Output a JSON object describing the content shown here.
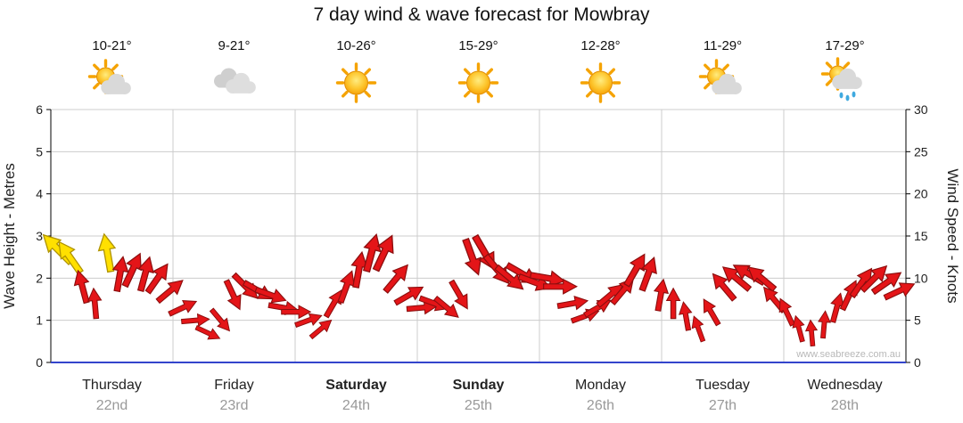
{
  "chart_data": {
    "type": "line",
    "title": "7 day wind & wave forecast for Mowbray",
    "ylabel": "Wave Height - Metres",
    "y2label": "Wind Speed - Knots",
    "ylim": [
      0,
      6
    ],
    "y2lim": [
      0,
      30
    ],
    "left_ticks": [
      0,
      1,
      2,
      3,
      4,
      5,
      6
    ],
    "right_ticks": [
      0,
      5,
      10,
      15,
      20,
      25,
      30
    ],
    "watermark": "www.seabreeze.com.au",
    "days": [
      {
        "name": "Thursday",
        "date": "22nd",
        "temp": "10-21°",
        "icon": "partly-cloudy",
        "weekend": false
      },
      {
        "name": "Friday",
        "date": "23rd",
        "temp": "9-21°",
        "icon": "cloudy",
        "weekend": false
      },
      {
        "name": "Saturday",
        "date": "24th",
        "temp": "10-26°",
        "icon": "sunny",
        "weekend": true
      },
      {
        "name": "Sunday",
        "date": "25th",
        "temp": "15-29°",
        "icon": "sunny",
        "weekend": true
      },
      {
        "name": "Monday",
        "date": "26th",
        "temp": "12-28°",
        "icon": "sunny",
        "weekend": false
      },
      {
        "name": "Tuesday",
        "date": "27th",
        "temp": "11-29°",
        "icon": "partly-cloudy",
        "weekend": false
      },
      {
        "name": "Wednesday",
        "date": "28th",
        "temp": "17-29°",
        "icon": "showers",
        "weekend": false
      }
    ],
    "wind": {
      "units": "knots",
      "knots": [
        13.5,
        12.5,
        9,
        7,
        13,
        10.5,
        11,
        10.5,
        10,
        8.5,
        6.5,
        5,
        3.5,
        5,
        8,
        9,
        8.5,
        8,
        6.5,
        6,
        5,
        4,
        7,
        9,
        11,
        13,
        13,
        10,
        8,
        6.5,
        7,
        6.5,
        8,
        12.5,
        13,
        11,
        10,
        10.5,
        9.5,
        10,
        9,
        7,
        5.5,
        6.5,
        8,
        8.5,
        11,
        10.5,
        8,
        7,
        5.5,
        4,
        6,
        9,
        10,
        10.5,
        10,
        7.5,
        6,
        4,
        3.5,
        4.5,
        6.5,
        8,
        9.5,
        10,
        9.5,
        8.5
      ],
      "dirs_deg": [
        315,
        325,
        345,
        355,
        350,
        10,
        25,
        15,
        35,
        50,
        65,
        85,
        115,
        140,
        155,
        135,
        120,
        110,
        100,
        90,
        70,
        50,
        30,
        20,
        10,
        15,
        25,
        40,
        60,
        85,
        110,
        130,
        150,
        160,
        150,
        140,
        130,
        120,
        110,
        100,
        90,
        80,
        70,
        60,
        50,
        40,
        30,
        20,
        10,
        0,
        350,
        340,
        330,
        320,
        310,
        300,
        310,
        320,
        335,
        345,
        355,
        5,
        15,
        25,
        35,
        45,
        55,
        65
      ],
      "yellow_indices": [
        0,
        1,
        4
      ]
    },
    "colors": {
      "arrow": "#e41518",
      "arrow_outline": "#8c0e0e",
      "arrow_yellow": "#ffe000",
      "arrow_yellow_outline": "#b09400",
      "axis_bottom": "#3344cc",
      "grid": "#cccccc",
      "axis": "#000000",
      "date_text": "#999999",
      "day_text": "#222222",
      "watermark_text": "#b8b8b8"
    }
  }
}
